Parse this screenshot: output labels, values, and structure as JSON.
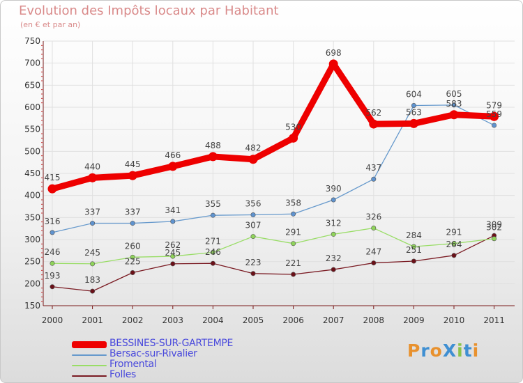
{
  "title": "Evolution des Impôts locaux par Habitant",
  "subtitle": "(en € et par an)",
  "logo": {
    "text": "ProXiti"
  },
  "colors": {
    "axis": "#7a1a1a",
    "grid": "#e0e0e0",
    "label": "#333333",
    "series": [
      "#ee0000",
      "#6699cc",
      "#99dd66",
      "#7a1a22"
    ],
    "point_fill": [
      "#ee0000",
      "#5f93cf",
      "#8fd45a",
      "#6b1018"
    ]
  },
  "chart_data": {
    "type": "line",
    "title": "Evolution des Impôts locaux par Habitant",
    "subtitle": "(en € et par an)",
    "x": [
      "2000",
      "2001",
      "2002",
      "2003",
      "2004",
      "2005",
      "2006",
      "2007",
      "2008",
      "2009",
      "2010",
      "2011"
    ],
    "ylim": [
      150,
      750
    ],
    "yticks": [
      150,
      200,
      250,
      300,
      350,
      400,
      450,
      500,
      550,
      600,
      650,
      700,
      750
    ],
    "grid": true,
    "legend": "bottom-left",
    "series": [
      {
        "name": "BESSINES-SUR-GARTEMPE",
        "values": [
          415,
          440,
          445,
          466,
          488,
          482,
          530,
          698,
          562,
          563,
          583,
          579
        ]
      },
      {
        "name": "Bersac-sur-Rivalier",
        "values": [
          316,
          337,
          337,
          341,
          355,
          356,
          358,
          390,
          437,
          604,
          605,
          559
        ]
      },
      {
        "name": "Fromental",
        "values": [
          246,
          245,
          260,
          262,
          271,
          307,
          291,
          312,
          326,
          284,
          291,
          302
        ]
      },
      {
        "name": "Folles",
        "values": [
          193,
          183,
          225,
          245,
          246,
          223,
          221,
          232,
          247,
          251,
          264,
          309
        ]
      }
    ]
  }
}
